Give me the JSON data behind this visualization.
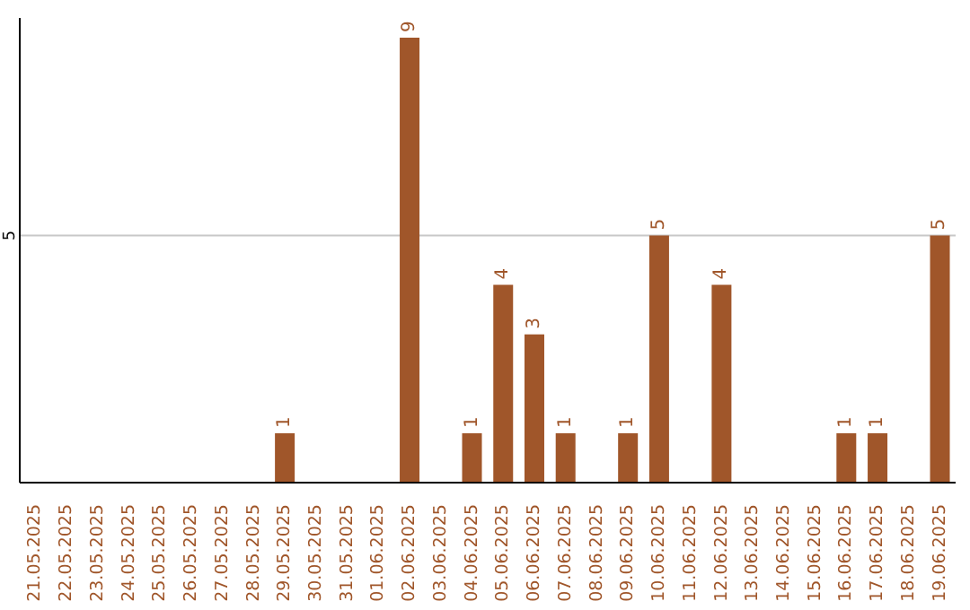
{
  "chart_data": {
    "type": "bar",
    "categories": [
      "21.05.2025",
      "22.05.2025",
      "23.05.2025",
      "24.05.2025",
      "25.05.2025",
      "26.05.2025",
      "27.05.2025",
      "28.05.2025",
      "29.05.2025",
      "30.05.2025",
      "31.05.2025",
      "01.06.2025",
      "02.06.2025",
      "03.06.2025",
      "04.06.2025",
      "05.06.2025",
      "06.06.2025",
      "07.06.2025",
      "08.06.2025",
      "09.06.2025",
      "10.06.2025",
      "11.06.2025",
      "12.06.2025",
      "13.06.2025",
      "14.06.2025",
      "15.06.2025",
      "16.06.2025",
      "17.06.2025",
      "18.06.2025",
      "19.06.2025"
    ],
    "values": [
      0,
      0,
      0,
      0,
      0,
      0,
      0,
      0,
      1,
      0,
      0,
      0,
      9,
      0,
      1,
      4,
      3,
      1,
      0,
      1,
      5,
      0,
      4,
      0,
      0,
      0,
      1,
      1,
      0,
      5
    ],
    "value_labels": [
      null,
      null,
      null,
      null,
      null,
      null,
      null,
      null,
      "1",
      null,
      null,
      null,
      "9",
      null,
      "1",
      "4",
      "3",
      "1",
      null,
      "1",
      "5",
      null,
      "4",
      null,
      null,
      null,
      "1",
      "1",
      null,
      "5"
    ],
    "color": "#a0562a",
    "ylim": [
      0,
      9.4
    ],
    "yticks": [
      5
    ],
    "grid": "y"
  }
}
